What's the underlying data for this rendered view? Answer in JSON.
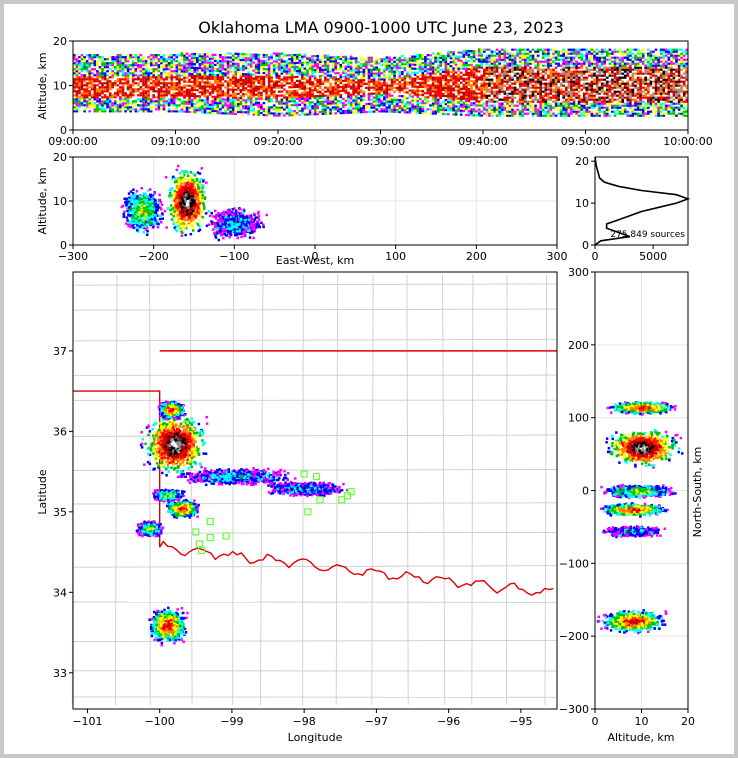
{
  "chart_data": [
    {
      "id": "time_height",
      "type": "heatmap",
      "title": "Oklahoma LMA 0900-1000 UTC June 23, 2023",
      "xlabel": "",
      "ylabel": "Altitude, km",
      "x_ticks": [
        "09:00:00",
        "09:10:00",
        "09:20:00",
        "09:30:00",
        "09:40:00",
        "09:50:00",
        "10:00:00"
      ],
      "y_ticks": [
        "0",
        "10",
        "20"
      ],
      "xlim": [
        "09:00:00",
        "10:00:00"
      ],
      "ylim": [
        0,
        20
      ],
      "altitude_band_km": {
        "x_min": [
          0,
          10,
          20,
          30,
          40,
          50,
          60
        ],
        "bottom": [
          4,
          4,
          3,
          4,
          3,
          3,
          3
        ],
        "top": [
          17,
          17,
          17,
          16,
          18,
          18,
          18
        ],
        "core_bottom": [
          7,
          7,
          7,
          8,
          6,
          6,
          6
        ],
        "core_top": [
          12,
          12,
          12,
          11,
          14,
          14,
          14
        ]
      }
    },
    {
      "id": "ew_altitude",
      "type": "heatmap",
      "xlabel": "East-West, km",
      "ylabel": "Altitude, km",
      "x_ticks": [
        "−300",
        "−200",
        "−100",
        "0",
        "100",
        "200",
        "300"
      ],
      "y_ticks": [
        "0",
        "10",
        "20"
      ],
      "xlim": [
        -300,
        300
      ],
      "ylim": [
        0,
        20
      ],
      "clusters": [
        {
          "x": -160,
          "y": 10,
          "w": 30,
          "h": 9,
          "max": "white"
        },
        {
          "x": -215,
          "y": 8,
          "w": 30,
          "h": 6,
          "max": "green"
        },
        {
          "x": -100,
          "y": 5,
          "w": 40,
          "h": 4,
          "max": "blue"
        }
      ]
    },
    {
      "id": "altitude_histogram",
      "type": "line",
      "xlabel": "",
      "ylabel": "",
      "x_ticks": [
        "0",
        "5000"
      ],
      "y_ticks": [
        "0",
        "10",
        "20"
      ],
      "xlim": [
        0,
        8000
      ],
      "ylim": [
        0,
        21
      ],
      "annotation": "275,849 sources",
      "altitude_km": [
        0,
        1,
        2,
        3,
        4,
        5,
        6,
        7,
        8,
        9,
        10,
        11,
        12,
        13,
        14,
        15,
        16,
        17,
        18,
        19,
        20,
        21
      ],
      "sources": [
        0,
        500,
        3000,
        2000,
        1000,
        1000,
        2000,
        3000,
        4000,
        5500,
        7000,
        8000,
        7000,
        4000,
        2000,
        800,
        400,
        300,
        200,
        100,
        50,
        0
      ]
    },
    {
      "id": "plan_view",
      "type": "scatter",
      "xlabel": "Longitude",
      "ylabel": "Latitude",
      "x_ticks": [
        "−101",
        "−100",
        "−99",
        "−98",
        "−97",
        "−96",
        "−95"
      ],
      "y_ticks": [
        "33",
        "34",
        "35",
        "36",
        "37"
      ],
      "xlim": [
        -101.2,
        -94.5
      ],
      "ylim": [
        32.55,
        37.98
      ],
      "clusters": [
        {
          "lon": -99.8,
          "lat": 35.85,
          "w": 0.5,
          "h": 0.45,
          "max": "white"
        },
        {
          "lon": -99.85,
          "lat": 36.28,
          "w": 0.2,
          "h": 0.12,
          "max": "red"
        },
        {
          "lon": -99.7,
          "lat": 35.05,
          "w": 0.25,
          "h": 0.12,
          "max": "red"
        },
        {
          "lon": -99.9,
          "lat": 35.22,
          "w": 0.25,
          "h": 0.08,
          "max": "green"
        },
        {
          "lon": -99.9,
          "lat": 33.6,
          "w": 0.3,
          "h": 0.25,
          "max": "red"
        },
        {
          "lon": -100.15,
          "lat": 34.8,
          "w": 0.2,
          "h": 0.1,
          "max": "green"
        },
        {
          "lon": -98.95,
          "lat": 35.45,
          "w": 0.9,
          "h": 0.12,
          "max": "blue"
        },
        {
          "lon": -98.0,
          "lat": 35.3,
          "w": 0.6,
          "h": 0.1,
          "max": "blue"
        }
      ],
      "stations": [
        [
          -99.5,
          34.75
        ],
        [
          -99.3,
          34.68
        ],
        [
          -99.45,
          34.6
        ],
        [
          -99.42,
          34.52
        ],
        [
          -99.08,
          34.7
        ],
        [
          -99.3,
          34.88
        ],
        [
          -98.0,
          35.47
        ],
        [
          -97.83,
          35.44
        ],
        [
          -97.78,
          35.15
        ],
        [
          -97.48,
          35.15
        ],
        [
          -97.4,
          35.2
        ],
        [
          -97.35,
          35.25
        ],
        [
          -97.95,
          35.0
        ]
      ]
    },
    {
      "id": "altitude_ns",
      "type": "heatmap",
      "xlabel": "Altitude, km",
      "ylabel": "North-South, km",
      "x_ticks": [
        "0",
        "10",
        "20"
      ],
      "y_ticks": [
        "−300",
        "−200",
        "−100",
        "0",
        "100",
        "200",
        "300"
      ],
      "xlim": [
        0,
        20
      ],
      "ylim": [
        -300,
        300
      ],
      "clusters": [
        {
          "x": 10,
          "y": 60,
          "w": 9,
          "h": 30,
          "max": "white"
        },
        {
          "x": 10,
          "y": 115,
          "w": 8,
          "h": 10,
          "max": "red"
        },
        {
          "x": 9,
          "y": 0,
          "w": 9,
          "h": 10,
          "max": "green"
        },
        {
          "x": 8,
          "y": -25,
          "w": 8,
          "h": 10,
          "max": "red"
        },
        {
          "x": 8,
          "y": -55,
          "w": 7,
          "h": 8,
          "max": "blue"
        },
        {
          "x": 8,
          "y": -178,
          "w": 8,
          "h": 18,
          "max": "red"
        }
      ]
    }
  ]
}
